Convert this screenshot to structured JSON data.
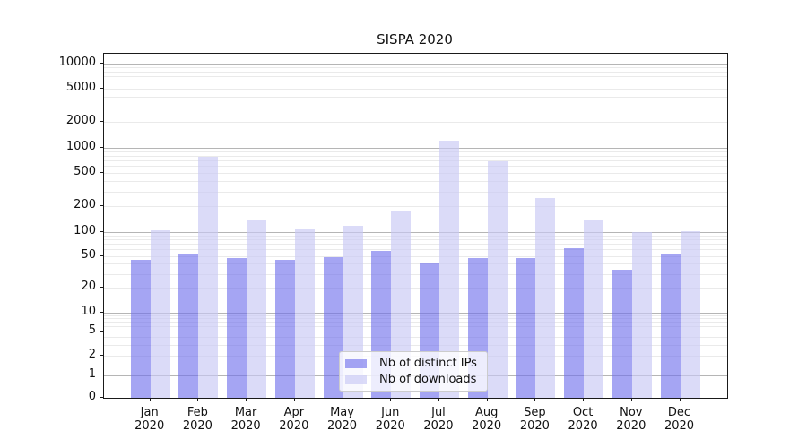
{
  "chart_data": {
    "type": "bar",
    "title": "SISPA 2020",
    "categories": [
      "Jan",
      "Feb",
      "Mar",
      "Apr",
      "May",
      "Jun",
      "Jul",
      "Aug",
      "Sep",
      "Oct",
      "Nov",
      "Dec"
    ],
    "x_tick_year": "2020",
    "series": [
      {
        "name": "Nb of distinct IPs",
        "color": "rgba(110,110,235,0.62)",
        "values": [
          45,
          54,
          47,
          45,
          48,
          57,
          41,
          47,
          47,
          62,
          34,
          54
        ]
      },
      {
        "name": "Nb of downloads",
        "color": "rgba(200,200,245,0.65)",
        "values": [
          105,
          770,
          138,
          107,
          116,
          175,
          1200,
          685,
          250,
          137,
          99,
          102
        ]
      }
    ],
    "yscale": "symlog",
    "ylim": [
      0,
      14000
    ],
    "yticks": [
      0,
      1,
      2,
      5,
      10,
      20,
      50,
      100,
      200,
      500,
      1000,
      2000,
      5000,
      10000
    ],
    "ytick_labels": [
      "0",
      "1",
      "2",
      "5",
      "10",
      "20",
      "50",
      "100",
      "200",
      "500",
      "1000",
      "2000",
      "5000",
      "10000"
    ],
    "grid": {
      "major_color": "#b5b5b5",
      "minor_color": "#eaeaea"
    },
    "legend": {
      "position": "lower-center",
      "entries": [
        "Nb of distinct IPs",
        "Nb of downloads"
      ]
    },
    "colors": {
      "background": "#ffffff",
      "spine": "#1a1a1a",
      "text": "#111111"
    }
  }
}
